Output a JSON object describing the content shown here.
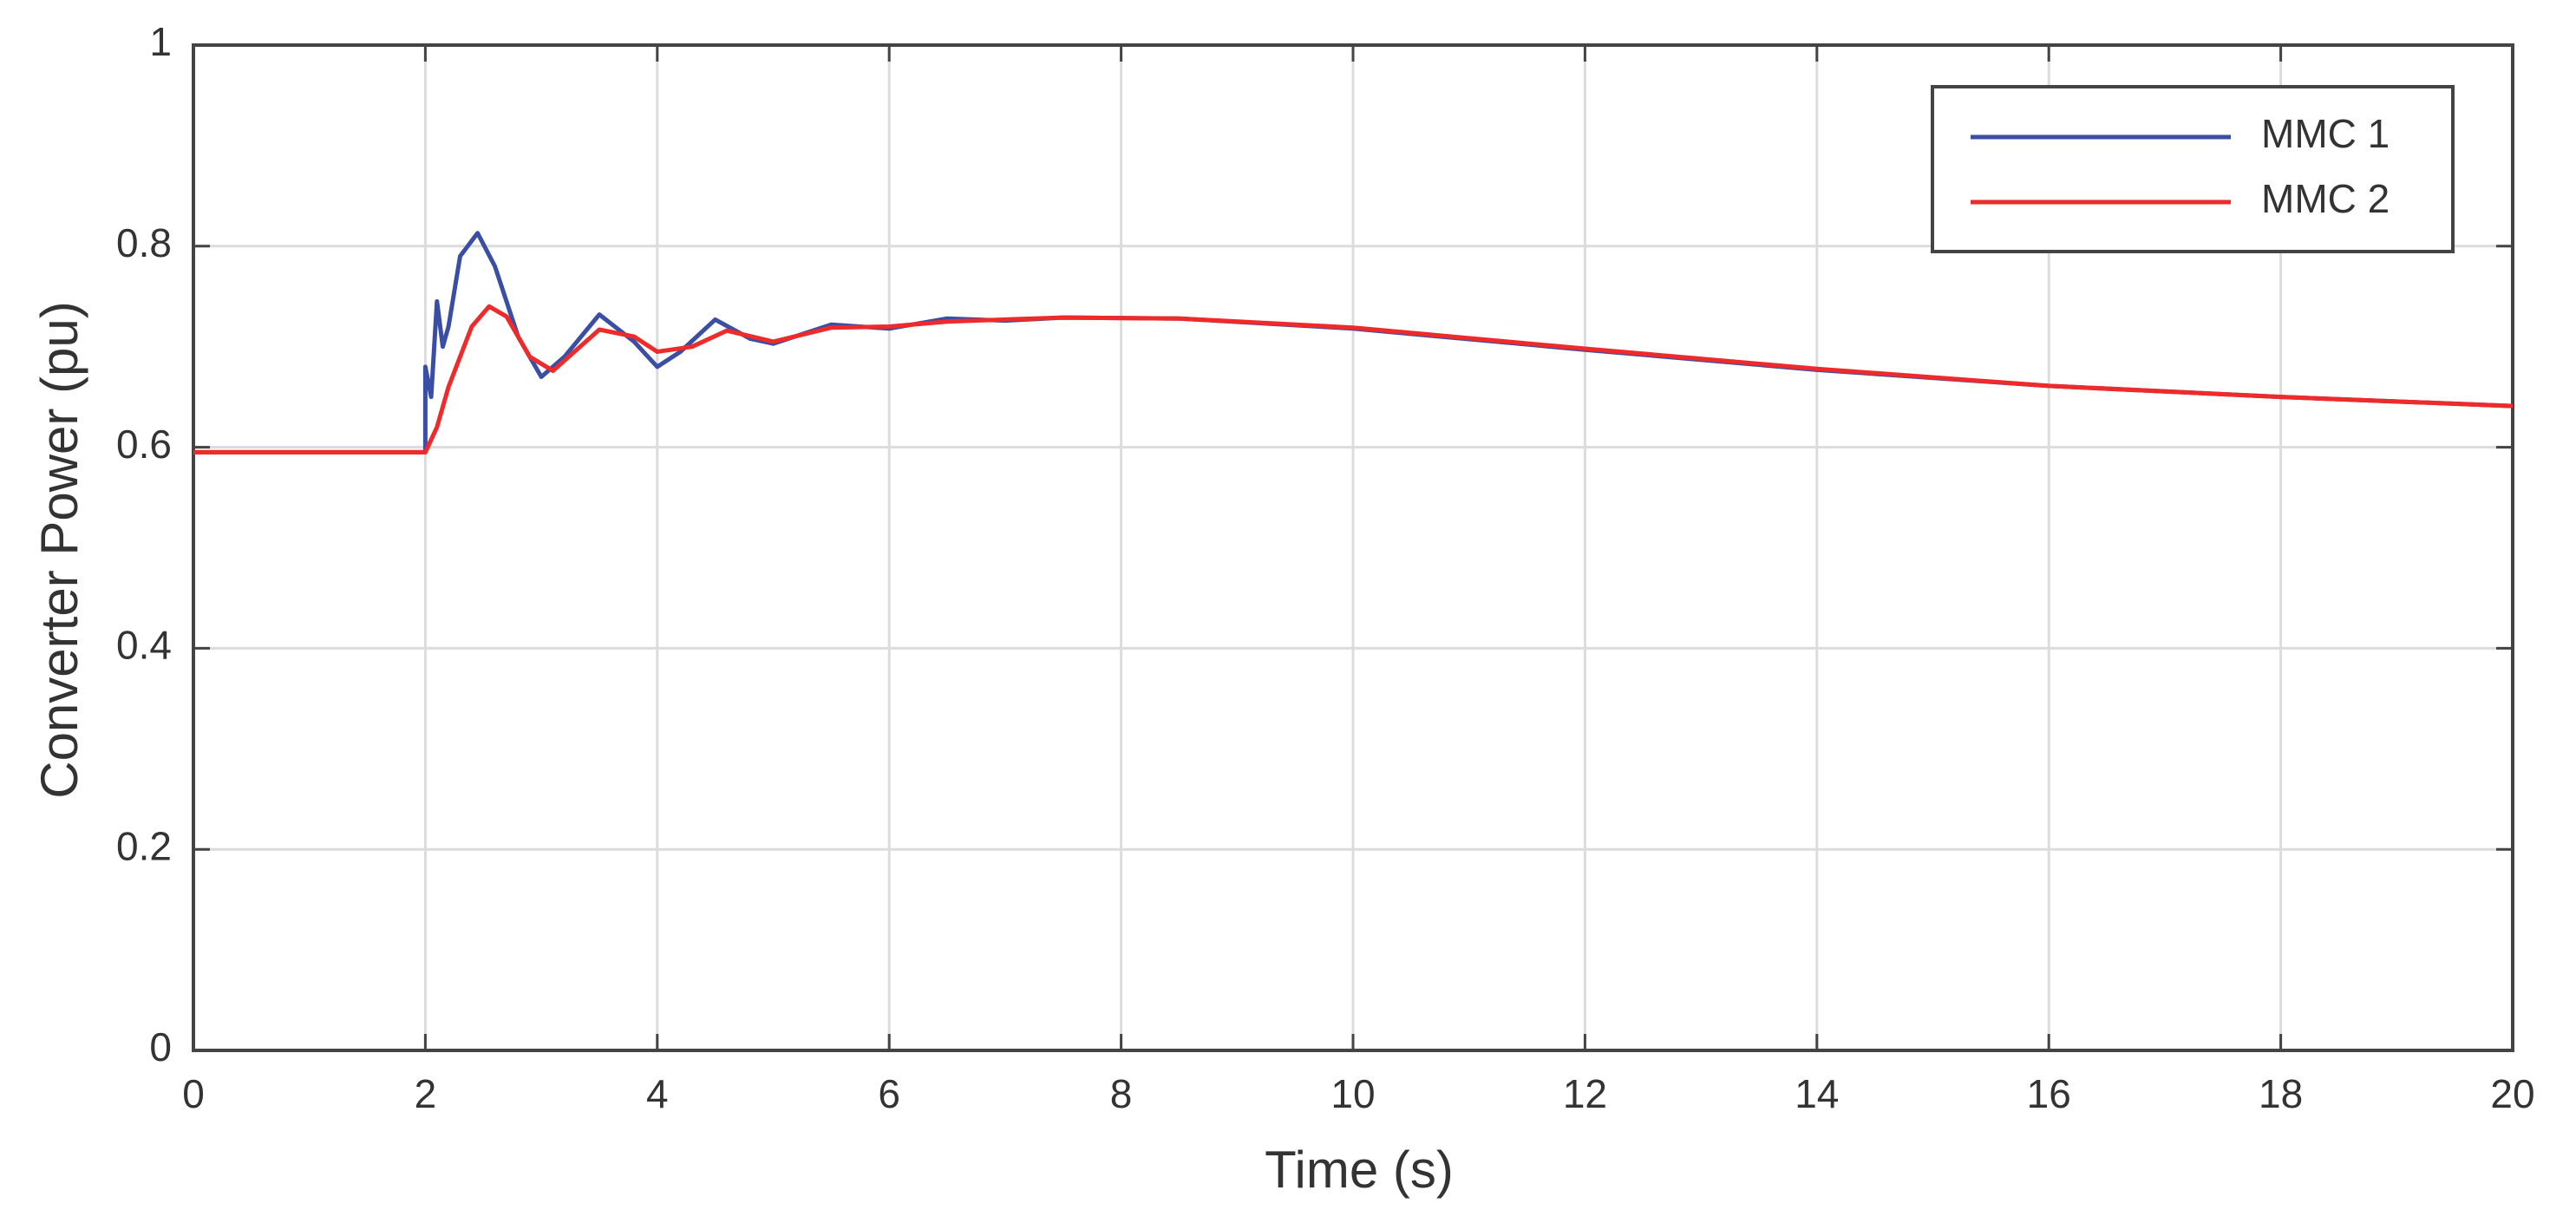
{
  "chart_data": {
    "type": "line",
    "xlabel": "Time (s)",
    "ylabel": "Converter Power (pu)",
    "xlim": [
      0,
      20
    ],
    "xticks": [
      0,
      2,
      4,
      6,
      8,
      10,
      12,
      14,
      16,
      18,
      20
    ],
    "ylim": [
      0,
      1
    ],
    "yticks": [
      0,
      0.2,
      0.4,
      0.6,
      0.8,
      1
    ],
    "grid": true,
    "legend": "top-right",
    "series": [
      {
        "name": "MMC 1",
        "color": "#3a4fa3",
        "x": [
          0,
          2,
          2.0,
          2.05,
          2.1,
          2.15,
          2.2,
          2.3,
          2.45,
          2.6,
          2.8,
          3.0,
          3.2,
          3.5,
          3.8,
          4.0,
          4.2,
          4.5,
          4.8,
          5.0,
          5.5,
          6.0,
          6.5,
          7.0,
          7.5,
          8.5,
          10,
          12,
          14,
          16,
          18,
          20
        ],
        "values": [
          0.595,
          0.595,
          0.68,
          0.65,
          0.745,
          0.7,
          0.72,
          0.79,
          0.813,
          0.78,
          0.71,
          0.67,
          0.69,
          0.732,
          0.705,
          0.68,
          0.695,
          0.727,
          0.708,
          0.703,
          0.722,
          0.718,
          0.728,
          0.726,
          0.729,
          0.728,
          0.718,
          0.697,
          0.677,
          0.661,
          0.65,
          0.641
        ]
      },
      {
        "name": "MMC 2",
        "color": "#ee2a2a",
        "x": [
          0,
          2,
          2.1,
          2.2,
          2.4,
          2.55,
          2.7,
          2.9,
          3.1,
          3.5,
          3.8,
          4.0,
          4.3,
          4.6,
          5.0,
          5.5,
          6.0,
          6.5,
          7.0,
          7.5,
          8.5,
          10,
          12,
          14,
          16,
          18,
          20
        ],
        "values": [
          0.595,
          0.595,
          0.62,
          0.66,
          0.72,
          0.74,
          0.73,
          0.69,
          0.676,
          0.717,
          0.71,
          0.695,
          0.7,
          0.716,
          0.705,
          0.719,
          0.72,
          0.725,
          0.727,
          0.729,
          0.728,
          0.719,
          0.698,
          0.678,
          0.661,
          0.65,
          0.641
        ]
      }
    ]
  }
}
